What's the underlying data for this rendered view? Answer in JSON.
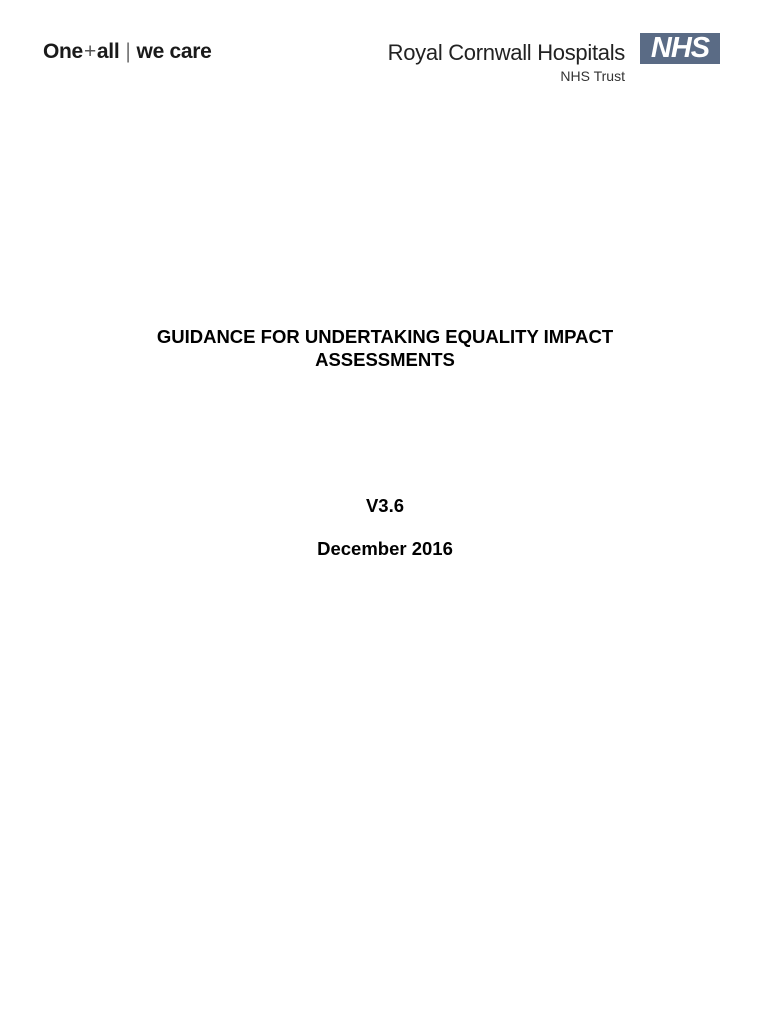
{
  "header": {
    "tagline": {
      "part1": "One",
      "plus": "+",
      "part2": "all",
      "separator": "|",
      "part3": "we care"
    },
    "trust_name": "Royal Cornwall Hospitals",
    "trust_sub": "NHS Trust",
    "nhs_logo": "NHS",
    "nhs_color": "#5a6b85"
  },
  "document": {
    "title_line1": "GUIDANCE FOR UNDERTAKING EQUALITY IMPACT",
    "title_line2": "ASSESSMENTS",
    "version": "V3.6",
    "date": "December 2016"
  }
}
